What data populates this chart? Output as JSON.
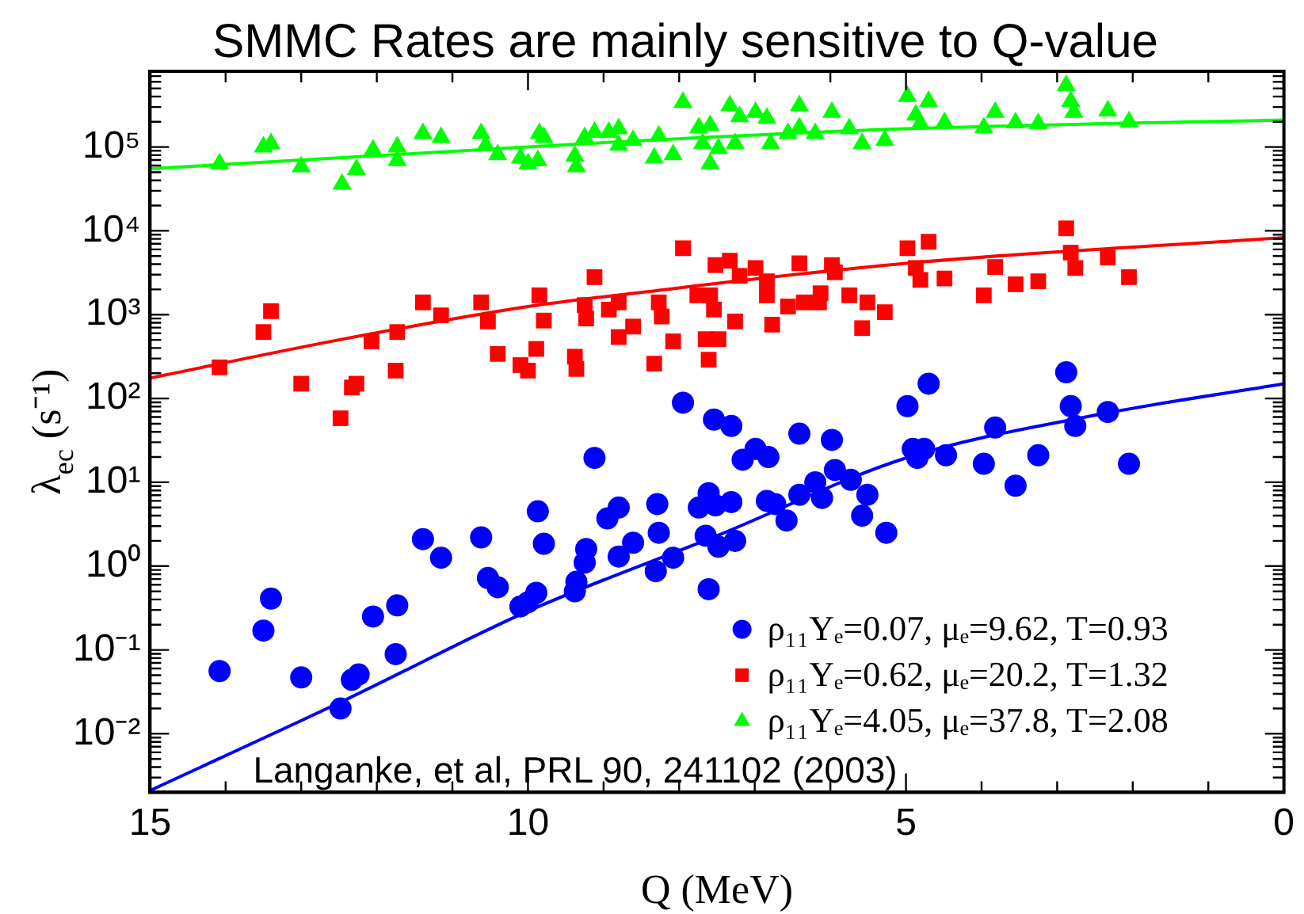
{
  "chart_data": {
    "type": "scatter",
    "title": "SMMC Rates are mainly sensitive to Q-value",
    "xlabel": "Q (MeV)",
    "ylabel": "λ$_{ec}$ (s⁻¹)",
    "log": "y",
    "grid": false,
    "legend": "bottom right",
    "annotations": [
      "Langanke, et al, PRL 90, 241102 (2003)"
    ],
    "xlim": [
      15,
      0
    ],
    "xticks": [
      15,
      {
        "value": 14,
        "label": null
      },
      {
        "value": 13,
        "label": null
      },
      {
        "value": 12,
        "label": null
      },
      {
        "value": 11,
        "label": null
      },
      10,
      {
        "value": 9,
        "label": null
      },
      {
        "value": 8,
        "label": null
      },
      {
        "value": 7,
        "label": null
      },
      {
        "value": 6,
        "label": null
      },
      5,
      {
        "value": 4,
        "label": null
      },
      {
        "value": 3,
        "label": null
      },
      {
        "value": 2,
        "label": null
      },
      {
        "value": 1,
        "label": null
      },
      0
    ],
    "ylim": [
      0.002,
      800000
    ],
    "yticks": [
      {
        "value": 0.002,
        "label": null
      },
      {
        "value": 0.003,
        "label": null
      },
      {
        "value": 0.004,
        "label": null
      },
      {
        "value": 0.005,
        "label": null
      },
      {
        "value": 0.006,
        "label": null
      },
      {
        "value": 0.007,
        "label": null
      },
      {
        "value": 0.008,
        "label": null
      },
      {
        "value": 0.009,
        "label": null
      },
      {
        "value": 0.01,
        "label": "10⁻²"
      },
      {
        "value": 0.02,
        "label": null
      },
      {
        "value": 0.03,
        "label": null
      },
      {
        "value": 0.04,
        "label": null
      },
      {
        "value": 0.05,
        "label": null
      },
      {
        "value": 0.06,
        "label": null
      },
      {
        "value": 0.07,
        "label": null
      },
      {
        "value": 0.08,
        "label": null
      },
      {
        "value": 0.09,
        "label": null
      },
      {
        "value": 0.1,
        "label": "10⁻¹"
      },
      {
        "value": 0.2,
        "label": null
      },
      {
        "value": 0.3,
        "label": null
      },
      {
        "value": 0.4,
        "label": null
      },
      {
        "value": 0.5,
        "label": null
      },
      {
        "value": 0.6,
        "label": null
      },
      {
        "value": 0.7,
        "label": null
      },
      {
        "value": 0.8,
        "label": null
      },
      {
        "value": 0.9,
        "label": null
      },
      {
        "value": 1,
        "label": "10⁰"
      },
      {
        "value": 2,
        "label": null
      },
      {
        "value": 3,
        "label": null
      },
      {
        "value": 4,
        "label": null
      },
      {
        "value": 5,
        "label": null
      },
      {
        "value": 6,
        "label": null
      },
      {
        "value": 7,
        "label": null
      },
      {
        "value": 8,
        "label": null
      },
      {
        "value": 9,
        "label": null
      },
      {
        "value": 10,
        "label": "10¹"
      },
      {
        "value": 20,
        "label": null
      },
      {
        "value": 30,
        "label": null
      },
      {
        "value": 40,
        "label": null
      },
      {
        "value": 50,
        "label": null
      },
      {
        "value": 60,
        "label": null
      },
      {
        "value": 70,
        "label": null
      },
      {
        "value": 80,
        "label": null
      },
      {
        "value": 90,
        "label": null
      },
      {
        "value": 100,
        "label": "10²"
      },
      {
        "value": 200,
        "label": null
      },
      {
        "value": 300,
        "label": null
      },
      {
        "value": 400,
        "label": null
      },
      {
        "value": 500,
        "label": null
      },
      {
        "value": 600,
        "label": null
      },
      {
        "value": 700,
        "label": null
      },
      {
        "value": 800,
        "label": null
      },
      {
        "value": 900,
        "label": null
      },
      {
        "value": 1000,
        "label": "10³"
      },
      {
        "value": 2000,
        "label": null
      },
      {
        "value": 3000,
        "label": null
      },
      {
        "value": 4000,
        "label": null
      },
      {
        "value": 5000,
        "label": null
      },
      {
        "value": 6000,
        "label": null
      },
      {
        "value": 7000,
        "label": null
      },
      {
        "value": 8000,
        "label": null
      },
      {
        "value": 9000,
        "label": null
      },
      {
        "value": 10000,
        "label": "10⁴"
      },
      {
        "value": 20000,
        "label": null
      },
      {
        "value": 30000,
        "label": null
      },
      {
        "value": 40000,
        "label": null
      },
      {
        "value": 50000,
        "label": null
      },
      {
        "value": 60000,
        "label": null
      },
      {
        "value": 70000,
        "label": null
      },
      {
        "value": 80000,
        "label": null
      },
      {
        "value": 90000,
        "label": null
      },
      {
        "value": 100000,
        "label": "10⁵"
      },
      {
        "value": 200000,
        "label": null
      },
      {
        "value": 300000,
        "label": null
      },
      {
        "value": 400000,
        "label": null
      },
      {
        "value": 500000,
        "label": null
      },
      {
        "value": 600000,
        "label": null
      },
      {
        "value": 700000,
        "label": null
      },
      {
        "value": 800000,
        "label": null
      }
    ],
    "series": [
      {
        "name": "ρ₁₁Yₑ=0.07, μₑ=9.62, T=0.93",
        "type": "scatter",
        "marker": "circle",
        "color": "#0000ff",
        "x": [
          14.08,
          13.5,
          13.4,
          13.0,
          12.48,
          12.33,
          12.24,
          12.05,
          11.73,
          11.75,
          11.39,
          11.15,
          10.62,
          10.53,
          10.4,
          10.1,
          10.0,
          9.89,
          9.87,
          9.79,
          9.38,
          9.36,
          9.25,
          9.23,
          9.12,
          8.95,
          8.8,
          8.8,
          8.61,
          7.95,
          7.54,
          7.31,
          8.29,
          8.27,
          8.08,
          8.31,
          7.61,
          7.65,
          7.48,
          7.26,
          7.74,
          7.61,
          7.52,
          7.31,
          7.16,
          6.99,
          6.82,
          6.84,
          6.73,
          6.58,
          6.41,
          6.41,
          6.2,
          6.11,
          5.98,
          5.94,
          5.73,
          5.51,
          5.58,
          5.26,
          4.98,
          4.7,
          4.91,
          4.76,
          4.85,
          4.47,
          3.97,
          3.82,
          3.55,
          3.25,
          2.88,
          2.82,
          2.76,
          2.33,
          2.05
        ],
        "values": [
          0.056,
          0.17,
          0.41,
          0.047,
          0.02,
          0.044,
          0.051,
          0.25,
          0.34,
          0.089,
          2.1,
          1.26,
          2.2,
          0.72,
          0.56,
          0.33,
          0.37,
          0.48,
          4.5,
          1.85,
          0.5,
          0.65,
          1.1,
          1.6,
          19.5,
          3.7,
          5.0,
          1.3,
          1.9,
          89,
          56,
          47,
          5.5,
          2.5,
          1.26,
          0.87,
          0.53,
          2.3,
          1.7,
          2.0,
          5.0,
          7.4,
          5.3,
          5.8,
          18.6,
          25,
          20,
          6.0,
          5.5,
          3.5,
          7.1,
          38,
          10,
          6.5,
          32,
          14,
          10.7,
          7.1,
          4.0,
          2.5,
          81,
          150,
          25,
          25,
          19.5,
          21,
          16.6,
          45,
          9.1,
          21,
          205,
          81,
          47,
          69,
          16.6
        ]
      },
      {
        "name": "ρ₁₁Yₑ=0.62, μₑ=20.2, T=1.32",
        "type": "scatter",
        "marker": "square",
        "color": "#ff0000",
        "x": [
          14.08,
          13.5,
          13.4,
          13.0,
          12.48,
          12.33,
          12.27,
          12.07,
          11.73,
          11.75,
          11.39,
          11.15,
          10.62,
          10.53,
          10.4,
          10.1,
          10.0,
          9.89,
          9.85,
          9.79,
          9.38,
          9.36,
          9.25,
          9.23,
          9.12,
          8.93,
          8.8,
          8.8,
          8.61,
          7.95,
          8.27,
          8.23,
          8.33,
          8.08,
          7.76,
          7.59,
          7.54,
          7.52,
          7.33,
          7.26,
          7.65,
          7.48,
          7.61,
          7.2,
          6.99,
          6.84,
          6.84,
          6.77,
          6.56,
          6.41,
          6.35,
          6.15,
          6.13,
          5.98,
          5.94,
          5.75,
          5.58,
          5.51,
          5.28,
          4.98,
          4.87,
          4.81,
          4.7,
          4.49,
          3.97,
          3.82,
          3.55,
          3.25,
          2.88,
          2.82,
          2.76,
          2.33,
          2.05
        ],
        "values": [
          235,
          620,
          1100,
          150,
          58,
          135,
          150,
          480,
          620,
          215,
          1400,
          980,
          1400,
          830,
          340,
          250,
          215,
          390,
          1700,
          850,
          315,
          225,
          1300,
          900,
          2800,
          1150,
          1400,
          540,
          720,
          6200,
          1400,
          950,
          260,
          480,
          1700,
          1700,
          1150,
          3900,
          4400,
          830,
          510,
          510,
          290,
          2900,
          3600,
          2500,
          1700,
          760,
          1250,
          4100,
          1400,
          1400,
          1800,
          3900,
          3200,
          1700,
          690,
          1400,
          1070,
          6200,
          3600,
          2600,
          7400,
          2700,
          1700,
          3700,
          2300,
          2500,
          10700,
          5500,
          3600,
          4800,
          2800
        ]
      },
      {
        "name": "ρ₁₁Yₑ=4.05, μₑ=37.8, T=2.08",
        "type": "scatter",
        "marker": "triangle",
        "color": "#00ff00",
        "x": [
          14.08,
          13.5,
          13.4,
          13.0,
          12.46,
          12.27,
          12.05,
          11.73,
          11.73,
          11.39,
          11.15,
          10.62,
          10.56,
          10.4,
          10.1,
          10.0,
          9.87,
          9.85,
          9.79,
          9.38,
          9.36,
          9.25,
          9.12,
          8.93,
          8.8,
          8.8,
          8.61,
          7.95,
          8.27,
          8.33,
          8.08,
          7.74,
          7.59,
          7.69,
          7.59,
          7.48,
          7.26,
          7.33,
          7.2,
          6.99,
          6.84,
          6.79,
          6.56,
          6.41,
          6.41,
          6.2,
          5.98,
          5.75,
          5.58,
          5.28,
          4.98,
          4.87,
          4.7,
          4.81,
          4.49,
          3.97,
          3.82,
          3.55,
          3.25,
          2.88,
          2.82,
          2.78,
          2.33,
          2.05
        ],
        "values": [
          63000,
          100000,
          110000,
          58000,
          36000,
          54000,
          92000,
          100000,
          69000,
          145000,
          130000,
          145000,
          104000,
          81000,
          74000,
          63000,
          69000,
          145000,
          130000,
          78000,
          58000,
          130000,
          150000,
          150000,
          165000,
          105000,
          120000,
          340000,
          135000,
          74000,
          81000,
          170000,
          180000,
          110000,
          63000,
          96000,
          110000,
          310000,
          230000,
          260000,
          220000,
          110000,
          145000,
          310000,
          170000,
          145000,
          260000,
          165000,
          110000,
          120000,
          400000,
          240000,
          350000,
          190000,
          195000,
          170000,
          260000,
          195000,
          190000,
          540000,
          350000,
          260000,
          270000,
          200000
        ]
      },
      {
        "type": "line",
        "marker": "none",
        "color": "#0000ff",
        "x": [
          15,
          12.43,
          10,
          7.5,
          5,
          2.5,
          0
        ],
        "values": [
          0.0021,
          0.025,
          0.29,
          2.3,
          19.5,
          63,
          150
        ]
      },
      {
        "type": "line",
        "marker": "none",
        "color": "#ff0000",
        "x": [
          15,
          12.5,
          10,
          8.6,
          5,
          0
        ],
        "values": [
          175,
          500,
          1250,
          1800,
          4100,
          8300
        ]
      },
      {
        "type": "line",
        "marker": "none",
        "color": "#00ff00",
        "x": [
          15,
          10,
          8.6,
          5,
          0
        ],
        "values": [
          55000,
          100000,
          118000,
          165000,
          210000
        ]
      }
    ]
  }
}
